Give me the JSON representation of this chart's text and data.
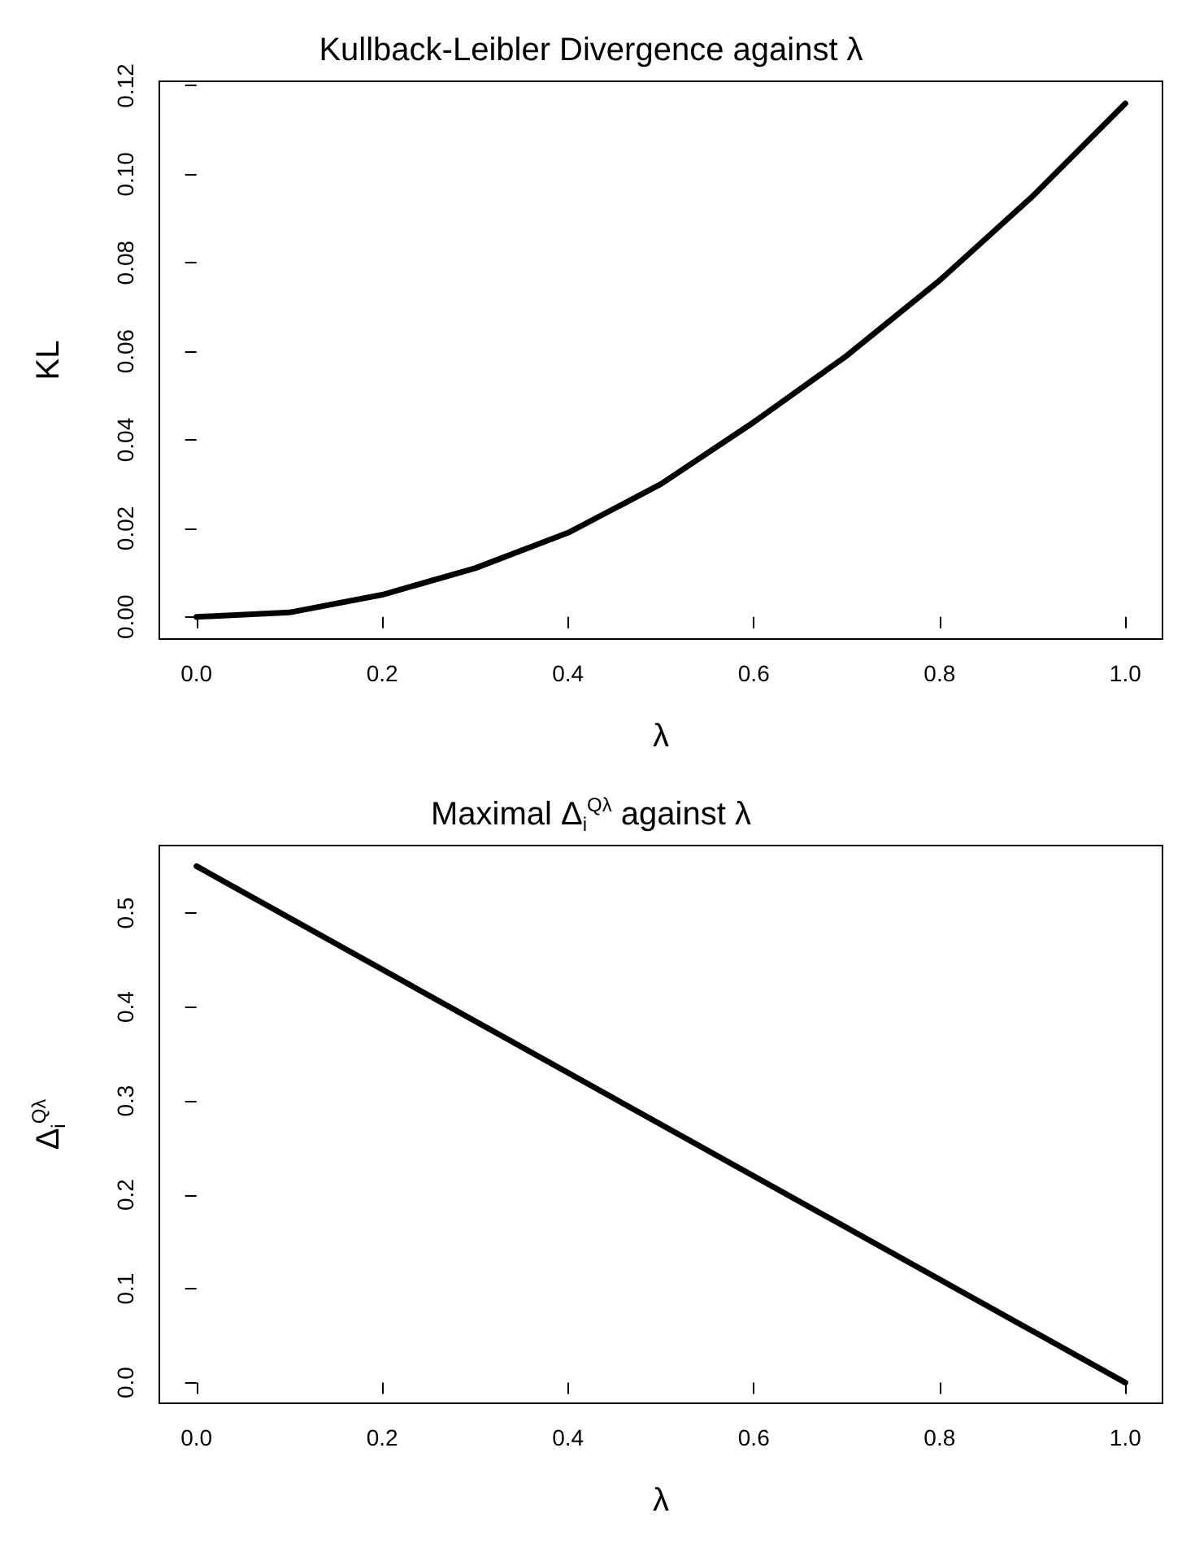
{
  "chart_data": [
    {
      "type": "line",
      "title": "Kullback-Leibler Divergence against λ",
      "xlabel": "λ",
      "ylabel": "KL",
      "x": [
        0,
        0.1,
        0.2,
        0.3,
        0.4,
        0.5,
        0.6,
        0.7,
        0.8,
        0.9,
        1.0
      ],
      "series": [
        {
          "color": "#000000",
          "values": [
            0,
            0.001,
            0.005,
            0.011,
            0.019,
            0.03,
            0.044,
            0.059,
            0.076,
            0.095,
            0.116
          ]
        }
      ],
      "xlim": [
        -0.04,
        1.04
      ],
      "xticks": [
        {
          "value": 0,
          "label": "0.0"
        },
        {
          "value": 0.2,
          "label": "0.2"
        },
        {
          "value": 0.4,
          "label": "0.4"
        },
        {
          "value": 0.6,
          "label": "0.6"
        },
        {
          "value": 0.8,
          "label": "0.8"
        },
        {
          "value": 1,
          "label": "1.0"
        }
      ],
      "ylim": [
        -0.005,
        0.121
      ],
      "yticks": [
        {
          "value": 0,
          "label": "0.00"
        },
        {
          "value": 0.02,
          "label": "0.02"
        },
        {
          "value": 0.04,
          "label": "0.04"
        },
        {
          "value": 0.06,
          "label": "0.06"
        },
        {
          "value": 0.08,
          "label": "0.08"
        },
        {
          "value": 0.1,
          "label": "0.10"
        },
        {
          "value": 0.12,
          "label": "0.12"
        }
      ],
      "grid": false,
      "marker": "none",
      "line_style": "solid"
    },
    {
      "type": "line",
      "title": "Maximal Δ$_{i}$$^{Qλ}$ against λ",
      "xlabel": "λ",
      "ylabel": "Δ$_{i}$$^{Qλ}$",
      "x": [
        0,
        1
      ],
      "series": [
        {
          "color": "#000000",
          "values": [
            0.55,
            0
          ]
        }
      ],
      "xlim": [
        -0.04,
        1.04
      ],
      "xticks": [
        {
          "value": 0,
          "label": "0.0"
        },
        {
          "value": 0.2,
          "label": "0.2"
        },
        {
          "value": 0.4,
          "label": "0.4"
        },
        {
          "value": 0.6,
          "label": "0.6"
        },
        {
          "value": 0.8,
          "label": "0.8"
        },
        {
          "value": 1,
          "label": "1.0"
        }
      ],
      "ylim": [
        -0.022,
        0.572
      ],
      "yticks": [
        {
          "value": 0,
          "label": "0.0"
        },
        {
          "value": 0.1,
          "label": "0.1"
        },
        {
          "value": 0.2,
          "label": "0.2"
        },
        {
          "value": 0.3,
          "label": "0.3"
        },
        {
          "value": 0.4,
          "label": "0.4"
        },
        {
          "value": 0.5,
          "label": "0.5"
        }
      ],
      "grid": false,
      "marker": "none",
      "line_style": "solid"
    }
  ]
}
